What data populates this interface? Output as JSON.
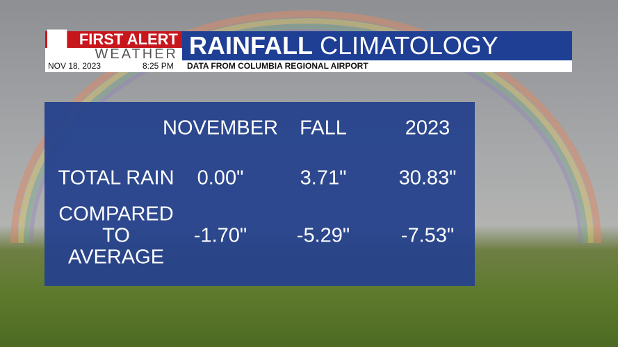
{
  "header": {
    "logo_top": "FIRST ALERT",
    "logo_bottom": "WEATHER",
    "title_bold": "RAINFALL",
    "title_light": "CLIMATOLOGY",
    "date": "NOV 18, 2023",
    "time": "8:25 PM",
    "subtitle": "DATA FROM COLUMBIA REGIONAL AIRPORT"
  },
  "table": {
    "columns": [
      "NOVEMBER",
      "FALL",
      "2023"
    ],
    "rows": [
      {
        "label": "TOTAL RAIN",
        "cells": [
          "0.00\"",
          "3.71\"",
          "30.83\""
        ]
      },
      {
        "label": "COMPARED TO AVERAGE",
        "cells": [
          "-1.70\"",
          "-5.29\"",
          "-7.53\""
        ]
      }
    ]
  }
}
